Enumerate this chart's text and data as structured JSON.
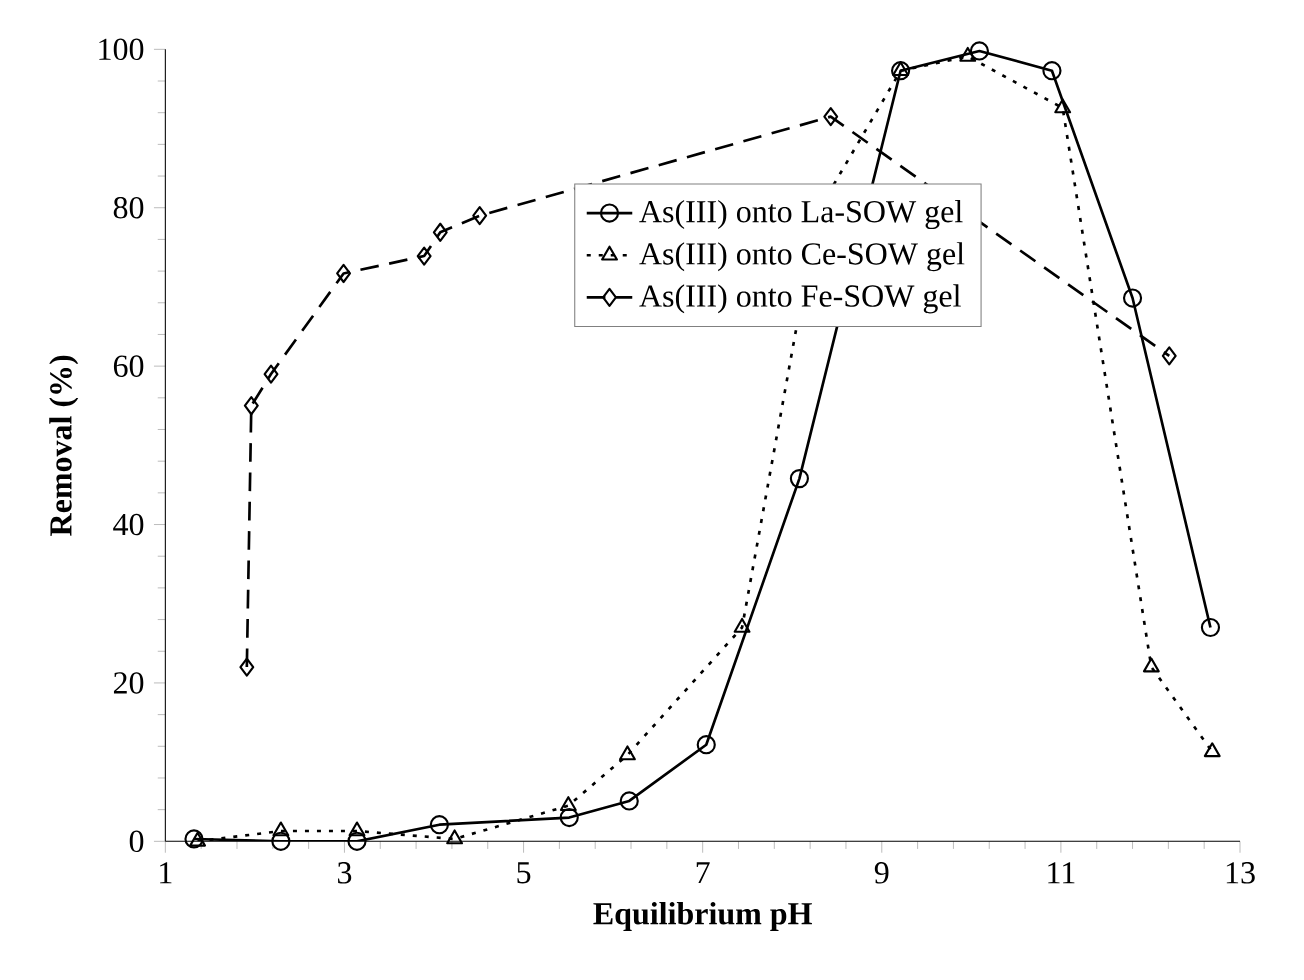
{
  "chart_data": {
    "type": "line",
    "xlabel": "Equilibrium pH",
    "ylabel": "Removal (%)",
    "xlim": [
      1,
      13
    ],
    "ylim": [
      0,
      100
    ],
    "xticks": [
      1,
      3,
      5,
      7,
      9,
      11,
      13
    ],
    "yticks": [
      0,
      20,
      40,
      60,
      80,
      100
    ],
    "grid": false,
    "legend": "center",
    "series": [
      {
        "name": "As(III) onto La-SOW gel",
        "color": "#000000",
        "marker": "circle",
        "line_style": "solid",
        "x": [
          1.32,
          2.29,
          3.14,
          4.06,
          5.51,
          6.18,
          7.04,
          8.08,
          9.21,
          10.09,
          10.9,
          11.8,
          12.67
        ],
        "values": [
          0.3,
          0,
          0,
          2.1,
          3,
          5.1,
          12.2,
          45.8,
          97.3,
          99.8,
          97.3,
          68.6,
          27
        ]
      },
      {
        "name": "As(III) onto Ce-SOW gel",
        "color": "#000000",
        "marker": "triangle",
        "line_style": "dotted",
        "x": [
          1.36,
          2.29,
          3.14,
          4.23,
          5.5,
          6.16,
          7.44,
          8.28,
          9.21,
          9.96,
          11.02,
          12.01,
          12.69
        ],
        "values": [
          0,
          1.3,
          1.3,
          0.3,
          4.5,
          10.9,
          27,
          79.4,
          97.3,
          99.1,
          92.6,
          22,
          11.3
        ]
      },
      {
        "name": "As(III) onto Fe-SOW gel",
        "color": "#000000",
        "marker": "diamond",
        "line_style": "dashed",
        "x": [
          1.91,
          1.96,
          2.18,
          2.99,
          3.89,
          4.07,
          4.51,
          8.43,
          12.21
        ],
        "values": [
          22,
          55,
          59,
          71.7,
          73.9,
          76.9,
          79,
          91.5,
          61.3
        ]
      }
    ]
  }
}
